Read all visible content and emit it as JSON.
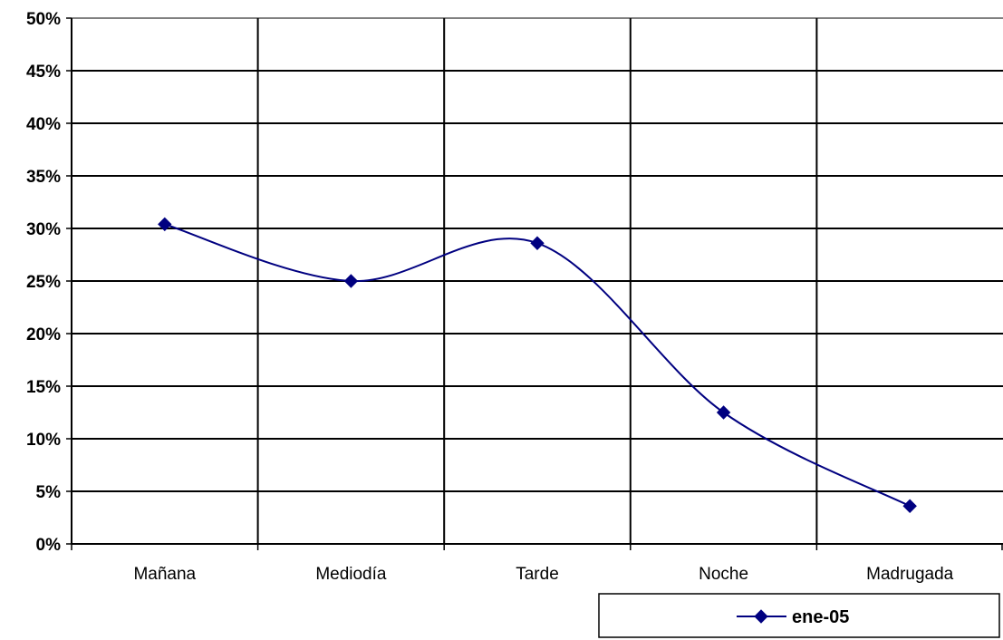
{
  "chart_data": {
    "type": "line",
    "categories": [
      "Mañana",
      "Mediodía",
      "Tarde",
      "Noche",
      "Madrugada"
    ],
    "series": [
      {
        "name": "ene-05",
        "values": [
          30.4,
          25.0,
          28.6,
          12.5,
          3.6
        ],
        "color": "#000080",
        "marker": "diamond",
        "smoothed": true
      }
    ],
    "ylim": [
      0,
      50
    ],
    "yticks": [
      "0%",
      "5%",
      "10%",
      "15%",
      "20%",
      "25%",
      "30%",
      "35%",
      "40%",
      "45%",
      "50%"
    ],
    "grid": true,
    "legend_position": "bottom-right"
  }
}
